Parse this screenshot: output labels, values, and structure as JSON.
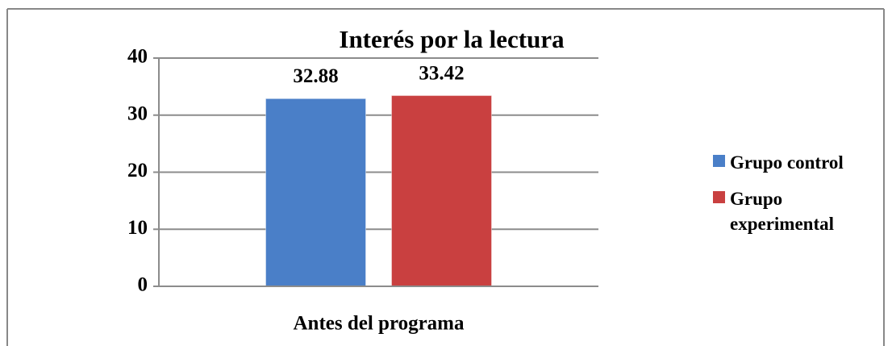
{
  "chart_data": {
    "type": "bar",
    "title": "Interés por la lectura",
    "categories": [
      "Antes del programa"
    ],
    "series": [
      {
        "name": "Grupo control",
        "color": "#4a7fc8",
        "values": [
          32.88
        ]
      },
      {
        "name": "Grupo experimental",
        "color": "#c94040",
        "values": [
          33.42
        ]
      }
    ],
    "ylim": [
      0,
      40
    ],
    "yticks": [
      0,
      10,
      20,
      30,
      40
    ],
    "grid": true,
    "legend": "right"
  }
}
